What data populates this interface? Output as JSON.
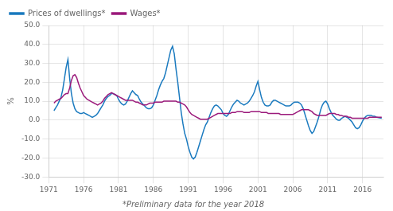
{
  "chart_data": {
    "type": "line",
    "ylabel": "%",
    "footnote": "*Preliminary data for the year 2018",
    "xlim": [
      1971,
      2019
    ],
    "ylim": [
      -30.0,
      50.0
    ],
    "xticks": [
      1971,
      1976,
      1981,
      1986,
      1991,
      1996,
      2001,
      2006,
      2011,
      2016
    ],
    "yticks": [
      {
        "value": -30.0,
        "label": "-30.0"
      },
      {
        "value": -20.0,
        "label": "-20.0"
      },
      {
        "value": -10.0,
        "label": "-10.0"
      },
      {
        "value": 0.0,
        "label": "0.0"
      },
      {
        "value": 10.0,
        "label": "10.0"
      },
      {
        "value": 20.0,
        "label": "20.0"
      },
      {
        "value": 30.0,
        "label": "30.0"
      },
      {
        "value": 40.0,
        "label": "40.0"
      },
      {
        "value": 50.0,
        "label": "50.0"
      }
    ],
    "grid": true,
    "legend": "upper left",
    "x": [
      1971.75,
      1972.0,
      1972.25,
      1972.5,
      1972.75,
      1973.0,
      1973.25,
      1973.5,
      1973.75,
      1974.0,
      1974.25,
      1974.5,
      1974.75,
      1975.0,
      1975.25,
      1975.5,
      1975.75,
      1976.0,
      1976.25,
      1976.5,
      1976.75,
      1977.0,
      1977.25,
      1977.5,
      1977.75,
      1978.0,
      1978.25,
      1978.5,
      1978.75,
      1979.0,
      1979.25,
      1979.5,
      1979.75,
      1980.0,
      1980.25,
      1980.5,
      1980.75,
      1981.0,
      1981.25,
      1981.5,
      1981.75,
      1982.0,
      1982.25,
      1982.5,
      1982.75,
      1983.0,
      1983.25,
      1983.5,
      1983.75,
      1984.0,
      1984.25,
      1984.5,
      1984.75,
      1985.0,
      1985.25,
      1985.5,
      1985.75,
      1986.0,
      1986.25,
      1986.5,
      1986.75,
      1987.0,
      1987.25,
      1987.5,
      1987.75,
      1988.0,
      1988.25,
      1988.5,
      1988.75,
      1989.0,
      1989.25,
      1989.5,
      1989.75,
      1990.0,
      1990.25,
      1990.5,
      1990.75,
      1991.0,
      1991.25,
      1991.5,
      1991.75,
      1992.0,
      1992.25,
      1992.5,
      1992.75,
      1993.0,
      1993.25,
      1993.5,
      1993.75,
      1994.0,
      1994.25,
      1994.5,
      1994.75,
      1995.0,
      1995.25,
      1995.5,
      1995.75,
      1996.0,
      1996.25,
      1996.5,
      1996.75,
      1997.0,
      1997.25,
      1997.5,
      1997.75,
      1998.0,
      1998.25,
      1998.5,
      1998.75,
      1999.0,
      1999.25,
      1999.5,
      1999.75,
      2000.0,
      2000.25,
      2000.5,
      2000.75,
      2001.0,
      2001.25,
      2001.5,
      2001.75,
      2002.0,
      2002.25,
      2002.5,
      2002.75,
      2003.0,
      2003.25,
      2003.5,
      2003.75,
      2004.0,
      2004.25,
      2004.5,
      2004.75,
      2005.0,
      2005.25,
      2005.5,
      2005.75,
      2006.0,
      2006.25,
      2006.5,
      2006.75,
      2007.0,
      2007.25,
      2007.5,
      2007.75,
      2008.0,
      2008.25,
      2008.5,
      2008.75,
      2009.0,
      2009.25,
      2009.5,
      2009.75,
      2010.0,
      2010.25,
      2010.5,
      2010.75,
      2011.0,
      2011.25,
      2011.5,
      2011.75,
      2012.0,
      2012.25,
      2012.5,
      2012.75,
      2013.0,
      2013.25,
      2013.5,
      2013.75,
      2014.0,
      2014.25,
      2014.5,
      2014.75,
      2015.0,
      2015.25,
      2015.5,
      2015.75,
      2016.0,
      2016.25,
      2016.5,
      2016.75,
      2017.0,
      2017.25,
      2017.5,
      2017.75,
      2018.0,
      2018.75
    ],
    "series": [
      {
        "name": "Wages*",
        "color": "#9b1a7b",
        "values": [
          9.0,
          10.0,
          10.5,
          11.0,
          11.5,
          12.5,
          13.5,
          14.0,
          14.0,
          17.0,
          21.0,
          23.5,
          24.0,
          22.5,
          19.5,
          17.0,
          15.0,
          13.0,
          12.0,
          11.0,
          10.5,
          10.0,
          9.5,
          9.0,
          8.5,
          8.0,
          8.5,
          9.0,
          10.0,
          11.5,
          12.5,
          13.5,
          14.0,
          14.5,
          14.0,
          13.5,
          13.0,
          12.5,
          12.0,
          11.5,
          11.0,
          10.5,
          10.5,
          10.5,
          10.5,
          10.5,
          10.0,
          9.5,
          9.5,
          9.0,
          8.5,
          8.0,
          8.0,
          8.0,
          8.5,
          9.0,
          9.0,
          9.0,
          9.5,
          9.5,
          9.5,
          9.5,
          9.5,
          10.0,
          10.0,
          10.0,
          10.0,
          10.0,
          10.0,
          10.0,
          10.0,
          9.5,
          9.5,
          9.0,
          8.5,
          8.0,
          7.0,
          5.5,
          4.0,
          3.0,
          2.5,
          2.0,
          1.5,
          1.0,
          0.5,
          0.5,
          0.5,
          0.5,
          0.5,
          1.0,
          1.5,
          2.0,
          2.5,
          3.0,
          3.5,
          3.5,
          3.5,
          3.5,
          3.5,
          3.5,
          3.5,
          3.5,
          4.0,
          4.0,
          4.0,
          4.5,
          4.5,
          4.5,
          4.5,
          4.0,
          4.0,
          4.0,
          4.0,
          4.5,
          4.5,
          4.5,
          4.5,
          4.5,
          4.5,
          4.0,
          4.0,
          4.0,
          4.0,
          3.5,
          3.5,
          3.5,
          3.5,
          3.5,
          3.5,
          3.5,
          3.0,
          3.0,
          3.0,
          3.0,
          3.0,
          3.0,
          3.0,
          3.0,
          3.5,
          4.0,
          4.5,
          5.0,
          5.5,
          5.5,
          5.5,
          5.5,
          5.5,
          5.0,
          4.5,
          3.5,
          3.0,
          2.5,
          2.5,
          2.5,
          2.5,
          2.5,
          2.5,
          3.0,
          3.5,
          3.5,
          3.5,
          3.5,
          3.0,
          3.0,
          2.5,
          2.5,
          2.0,
          2.0,
          2.0,
          1.5,
          1.5,
          1.0,
          1.0,
          1.0,
          1.0,
          1.0,
          1.0,
          1.0,
          1.0,
          1.0,
          1.0,
          1.5,
          1.5,
          1.5,
          1.5,
          1.5,
          1.5
        ]
      },
      {
        "name": "Prices of dwellings*",
        "color": "#1a7abf",
        "values": [
          5.0,
          6.5,
          8.0,
          10.0,
          12.0,
          16.0,
          22.0,
          28.0,
          32.0,
          22.0,
          14.0,
          9.0,
          6.0,
          4.5,
          4.0,
          3.5,
          3.5,
          4.0,
          3.5,
          3.0,
          2.5,
          2.0,
          1.5,
          2.0,
          2.5,
          3.5,
          5.0,
          6.5,
          8.0,
          10.0,
          11.5,
          12.5,
          13.0,
          14.0,
          14.0,
          13.5,
          13.0,
          11.0,
          9.5,
          8.5,
          8.0,
          8.5,
          10.0,
          12.0,
          14.0,
          15.5,
          14.5,
          13.5,
          13.0,
          11.0,
          9.5,
          8.5,
          7.5,
          6.5,
          6.0,
          6.0,
          6.5,
          8.0,
          10.5,
          13.0,
          16.0,
          18.5,
          20.5,
          22.0,
          25.0,
          29.0,
          33.0,
          37.0,
          39.0,
          35.0,
          27.0,
          20.0,
          12.0,
          4.0,
          -2.0,
          -7.0,
          -10.0,
          -14.0,
          -17.0,
          -19.5,
          -20.5,
          -19.5,
          -17.0,
          -14.0,
          -11.0,
          -8.0,
          -5.0,
          -2.5,
          -1.0,
          1.5,
          4.0,
          6.0,
          7.5,
          8.0,
          7.5,
          6.5,
          5.5,
          3.5,
          2.5,
          2.0,
          3.0,
          5.0,
          7.0,
          8.5,
          9.5,
          10.5,
          10.0,
          9.0,
          8.5,
          8.0,
          8.5,
          9.0,
          10.0,
          11.5,
          13.0,
          15.0,
          18.0,
          20.5,
          16.0,
          12.0,
          9.5,
          8.0,
          7.5,
          7.5,
          8.0,
          9.5,
          10.5,
          10.5,
          10.0,
          9.5,
          9.0,
          8.5,
          8.0,
          7.5,
          7.5,
          7.5,
          8.0,
          9.0,
          9.5,
          9.5,
          9.5,
          9.0,
          8.0,
          6.0,
          3.0,
          0.0,
          -3.0,
          -5.5,
          -7.0,
          -6.0,
          -3.5,
          -1.0,
          2.0,
          5.5,
          8.0,
          9.5,
          10.0,
          8.5,
          6.0,
          4.0,
          2.5,
          1.5,
          0.5,
          0.0,
          0.0,
          1.0,
          1.5,
          2.0,
          1.5,
          1.0,
          0.0,
          -1.0,
          -2.5,
          -4.0,
          -4.5,
          -4.0,
          -2.5,
          -0.5,
          1.0,
          2.0,
          2.5,
          2.5,
          2.5,
          2.0,
          2.0,
          1.5,
          1.0
        ]
      }
    ]
  }
}
